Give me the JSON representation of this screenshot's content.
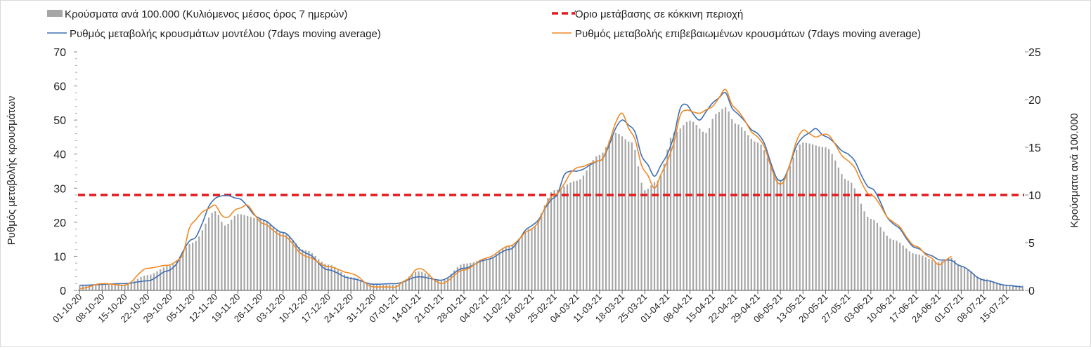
{
  "chart_data": {
    "type": "bar+line",
    "legend": {
      "bars": "Κρούσματα ανά 100.000 (Κυλιόμενος μέσος όρος 7 ημερών)",
      "threshold": "Όριο μετάβασης σε κόκκινη περιοχή",
      "model": "Ρυθμός μεταβολής κρουσμάτων μοντέλου (7days moving average)",
      "confirmed": "Ρυθμός μεταβολής επιβεβαιωμένων κρουσμάτων (7days moving average)"
    },
    "ylabel_left": "Ρυθμός μεταβολής κρουσμάτων",
    "ylabel_right": "Κρούσματα ανά 100.000",
    "ylim_left": [
      0,
      70
    ],
    "ylim_right": [
      0,
      25
    ],
    "yticks_left": [
      "0",
      "10",
      "20",
      "30",
      "40",
      "50",
      "60",
      "70"
    ],
    "yticks_right": [
      "0",
      "5",
      "10",
      "15",
      "20",
      "25"
    ],
    "x_start": "2020-10-01",
    "x_end": "2021-07-20",
    "xticks": [
      "01-10-20",
      "08-10-20",
      "15-10-20",
      "22-10-20",
      "29-10-20",
      "05-11-20",
      "12-11-20",
      "19-11-20",
      "26-11-20",
      "03-12-20",
      "10-12-20",
      "17-12-20",
      "24-12-20",
      "31-12-20",
      "07-01-21",
      "14-01-21",
      "21-01-21",
      "28-01-21",
      "04-02-21",
      "11-02-21",
      "18-02-21",
      "25-02-21",
      "04-03-21",
      "11-03-21",
      "18-03-21",
      "25-03-21",
      "01-04-21",
      "08-04-21",
      "15-04-21",
      "22-04-21",
      "29-04-21",
      "06-05-21",
      "13-05-21",
      "20-05-21",
      "27-05-21",
      "03-06-21",
      "10-06-21",
      "17-06-21",
      "24-06-21",
      "01-07-21",
      "08-07-21",
      "15-07-21"
    ],
    "threshold_value": 28,
    "bars_keyframes": [
      [
        "2020-10-01",
        0.5
      ],
      [
        "2020-10-08",
        0.6
      ],
      [
        "2020-10-15",
        0.6
      ],
      [
        "2020-10-22",
        1.6
      ],
      [
        "2020-10-29",
        2.6
      ],
      [
        "2020-11-05",
        5.0
      ],
      [
        "2020-11-12",
        8.3
      ],
      [
        "2020-11-15",
        6.8
      ],
      [
        "2020-11-19",
        8.0
      ],
      [
        "2020-11-26",
        7.5
      ],
      [
        "2020-12-03",
        6.0
      ],
      [
        "2020-12-10",
        4.2
      ],
      [
        "2020-12-17",
        2.7
      ],
      [
        "2020-12-24",
        1.4
      ],
      [
        "2020-12-31",
        0.6
      ],
      [
        "2021-01-07",
        0.6
      ],
      [
        "2021-01-14",
        2.0
      ],
      [
        "2021-01-21",
        1.0
      ],
      [
        "2021-01-28",
        2.8
      ],
      [
        "2021-02-04",
        3.2
      ],
      [
        "2021-02-11",
        4.7
      ],
      [
        "2021-02-18",
        6.5
      ],
      [
        "2021-02-25",
        10.5
      ],
      [
        "2021-03-04",
        11.5
      ],
      [
        "2021-03-11",
        14.2
      ],
      [
        "2021-03-16",
        16.5
      ],
      [
        "2021-03-21",
        15.5
      ],
      [
        "2021-03-25",
        10.5
      ],
      [
        "2021-03-29",
        11.5
      ],
      [
        "2021-04-03",
        16.5
      ],
      [
        "2021-04-08",
        17.8
      ],
      [
        "2021-04-13",
        16.5
      ],
      [
        "2021-04-16",
        18.5
      ],
      [
        "2021-04-19",
        19.2
      ],
      [
        "2021-04-22",
        17.5
      ],
      [
        "2021-04-29",
        15.5
      ],
      [
        "2021-05-06",
        11.5
      ],
      [
        "2021-05-13",
        15.5
      ],
      [
        "2021-05-20",
        15.0
      ],
      [
        "2021-05-27",
        11.5
      ],
      [
        "2021-06-03",
        7.5
      ],
      [
        "2021-06-10",
        5.3
      ],
      [
        "2021-06-17",
        3.8
      ],
      [
        "2021-06-24",
        3.0
      ],
      [
        "2021-06-28",
        3.4
      ],
      [
        "2021-07-01",
        2.5
      ],
      [
        "2021-07-08",
        1.2
      ],
      [
        "2021-07-15",
        0.6
      ],
      [
        "2021-07-20",
        0.5
      ]
    ],
    "model_keyframes": [
      [
        "2020-10-01",
        1.5
      ],
      [
        "2020-10-15",
        2.0
      ],
      [
        "2020-10-22",
        2.8
      ],
      [
        "2020-10-29",
        6.0
      ],
      [
        "2020-11-05",
        15.0
      ],
      [
        "2020-11-12",
        27.0
      ],
      [
        "2020-11-15",
        28.0
      ],
      [
        "2020-11-19",
        27.0
      ],
      [
        "2020-11-26",
        21.0
      ],
      [
        "2020-12-03",
        17.0
      ],
      [
        "2020-12-10",
        11.0
      ],
      [
        "2020-12-17",
        6.0
      ],
      [
        "2020-12-24",
        3.5
      ],
      [
        "2020-12-31",
        1.8
      ],
      [
        "2021-01-07",
        2.0
      ],
      [
        "2021-01-14",
        4.0
      ],
      [
        "2021-01-21",
        3.0
      ],
      [
        "2021-01-28",
        6.5
      ],
      [
        "2021-02-04",
        9.0
      ],
      [
        "2021-02-11",
        12.0
      ],
      [
        "2021-02-18",
        19.0
      ],
      [
        "2021-02-25",
        27.0
      ],
      [
        "2021-03-01",
        35.0
      ],
      [
        "2021-03-04",
        35.0
      ],
      [
        "2021-03-11",
        38.0
      ],
      [
        "2021-03-18",
        50.0
      ],
      [
        "2021-03-21",
        48.0
      ],
      [
        "2021-03-25",
        38.0
      ],
      [
        "2021-03-28",
        33.5
      ],
      [
        "2021-04-01",
        40.0
      ],
      [
        "2021-04-06",
        55.0
      ],
      [
        "2021-04-11",
        50.0
      ],
      [
        "2021-04-15",
        55.0
      ],
      [
        "2021-04-19",
        58.0
      ],
      [
        "2021-04-22",
        52.0
      ],
      [
        "2021-04-29",
        46.0
      ],
      [
        "2021-05-06",
        32.0
      ],
      [
        "2021-05-13",
        45.0
      ],
      [
        "2021-05-17",
        47.5
      ],
      [
        "2021-05-20",
        45.0
      ],
      [
        "2021-05-27",
        40.0
      ],
      [
        "2021-06-03",
        30.0
      ],
      [
        "2021-06-10",
        19.5
      ],
      [
        "2021-06-17",
        12.5
      ],
      [
        "2021-06-21",
        10.5
      ],
      [
        "2021-06-24",
        9.0
      ],
      [
        "2021-06-28",
        8.8
      ],
      [
        "2021-07-01",
        7.0
      ],
      [
        "2021-07-08",
        3.0
      ],
      [
        "2021-07-15",
        1.5
      ],
      [
        "2021-07-20",
        1.0
      ]
    ],
    "confirmed_keyframes": [
      [
        "2020-10-01",
        0.5
      ],
      [
        "2020-10-08",
        2.0
      ],
      [
        "2020-10-15",
        1.5
      ],
      [
        "2020-10-22",
        6.5
      ],
      [
        "2020-10-29",
        7.5
      ],
      [
        "2020-11-01",
        9.0
      ],
      [
        "2020-11-05",
        20.0
      ],
      [
        "2020-11-08",
        23.0
      ],
      [
        "2020-11-12",
        25.0
      ],
      [
        "2020-11-15",
        21.0
      ],
      [
        "2020-11-19",
        24.0
      ],
      [
        "2020-11-22",
        25.0
      ],
      [
        "2020-11-26",
        20.0
      ],
      [
        "2020-12-03",
        16.0
      ],
      [
        "2020-12-10",
        10.0
      ],
      [
        "2020-12-17",
        7.0
      ],
      [
        "2020-12-24",
        5.0
      ],
      [
        "2020-12-31",
        1.0
      ],
      [
        "2021-01-07",
        1.0
      ],
      [
        "2021-01-10",
        3.0
      ],
      [
        "2021-01-14",
        6.5
      ],
      [
        "2021-01-21",
        2.0
      ],
      [
        "2021-01-28",
        6.0
      ],
      [
        "2021-02-04",
        9.5
      ],
      [
        "2021-02-11",
        13.0
      ],
      [
        "2021-02-18",
        18.0
      ],
      [
        "2021-02-25",
        28.0
      ],
      [
        "2021-03-04",
        36.0
      ],
      [
        "2021-03-11",
        38.0
      ],
      [
        "2021-03-18",
        52.0
      ],
      [
        "2021-03-21",
        46.0
      ],
      [
        "2021-03-25",
        35.0
      ],
      [
        "2021-03-28",
        30.0
      ],
      [
        "2021-04-01",
        38.0
      ],
      [
        "2021-04-06",
        53.0
      ],
      [
        "2021-04-11",
        52.0
      ],
      [
        "2021-04-15",
        54.0
      ],
      [
        "2021-04-19",
        59.0
      ],
      [
        "2021-04-22",
        53.0
      ],
      [
        "2021-04-29",
        45.0
      ],
      [
        "2021-05-06",
        31.0
      ],
      [
        "2021-05-13",
        47.0
      ],
      [
        "2021-05-17",
        45.0
      ],
      [
        "2021-05-20",
        46.0
      ],
      [
        "2021-05-27",
        38.0
      ],
      [
        "2021-06-03",
        28.0
      ],
      [
        "2021-06-10",
        20.0
      ],
      [
        "2021-06-17",
        13.0
      ],
      [
        "2021-06-21",
        10.0
      ],
      [
        "2021-06-24",
        7.5
      ],
      [
        "2021-06-28",
        10.0
      ]
    ]
  }
}
